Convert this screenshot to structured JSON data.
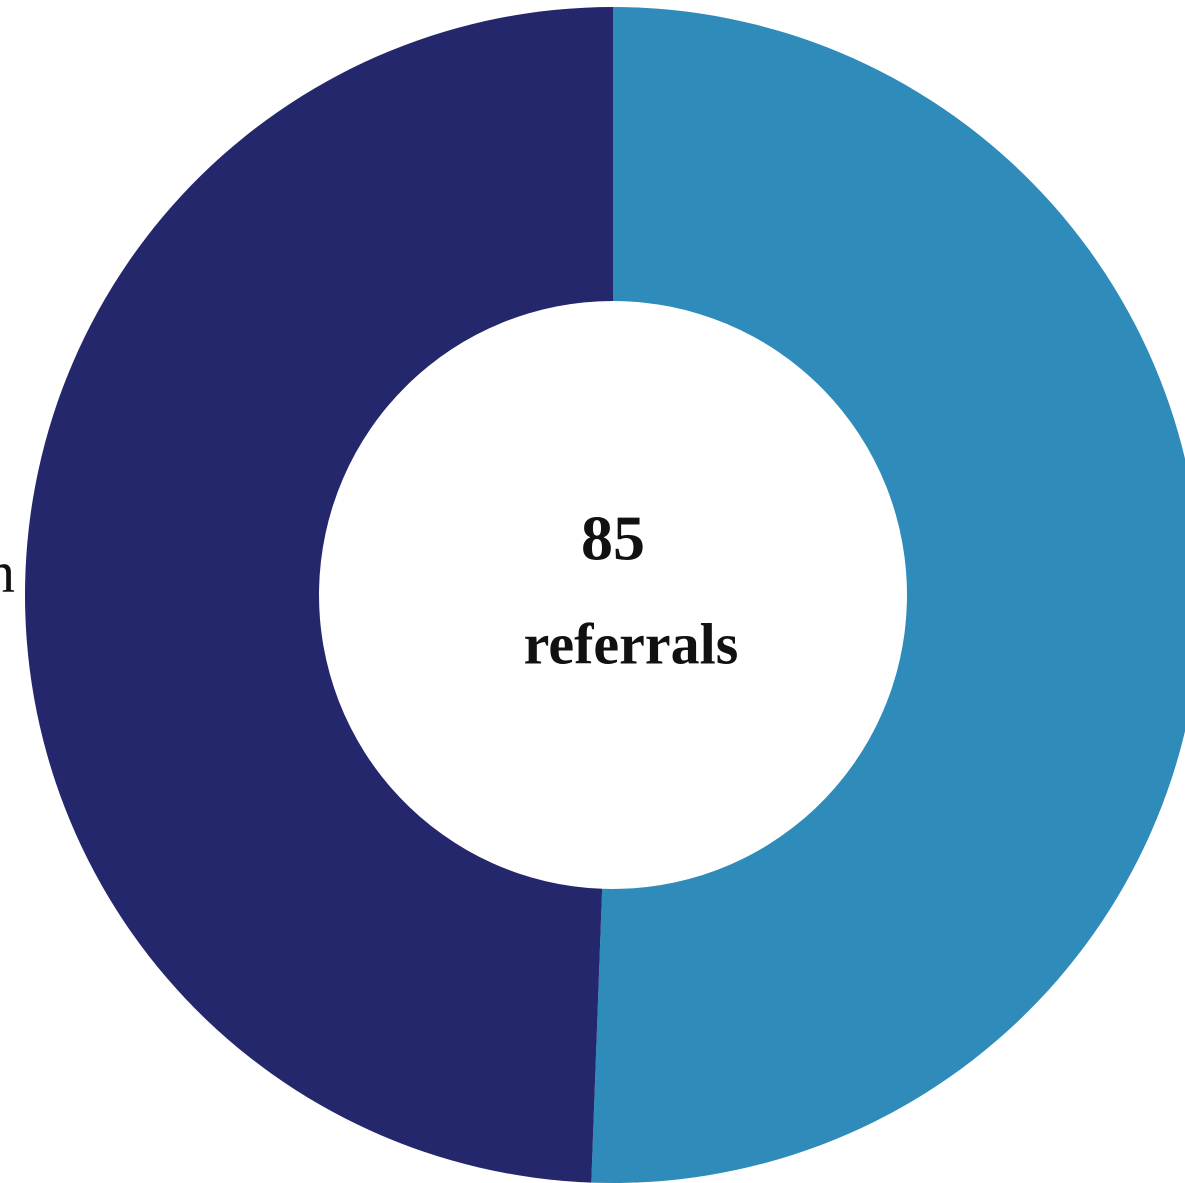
{
  "chart_data": {
    "type": "donut",
    "categories": [
      null,
      null
    ],
    "values": [
      43,
      42
    ],
    "colors": [
      "#2e8bba",
      "#24276c"
    ],
    "total": 85,
    "total_label": "referrals",
    "annotation": "n"
  }
}
